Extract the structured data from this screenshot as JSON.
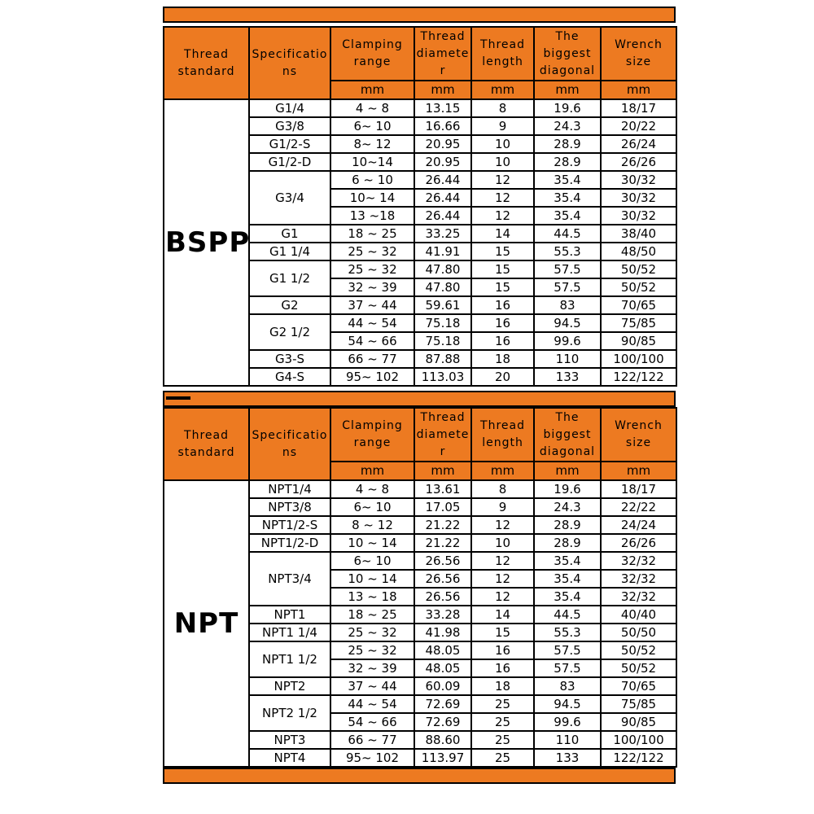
{
  "page": {
    "accent_orange": "#ED7A21",
    "border_color": "#000000",
    "background": "#ffffff"
  },
  "tables": [
    {
      "group_label": "BSPP",
      "headers": [
        "Thread standard",
        "Specifications",
        "Clamping range",
        "Thread diameter",
        "Thread length",
        "The biggest diagonal",
        "Wrench size"
      ],
      "unit_row": [
        "mm",
        "mm",
        "mm",
        "mm",
        "mm"
      ],
      "columns": [
        "Specifications",
        "Clamping range (mm)",
        "Thread diameter (mm)",
        "Thread length (mm)",
        "The biggest diagonal (mm)",
        "Wrench size (mm)"
      ],
      "rows": [
        {
          "spec": "G1/4",
          "rowspan": 1,
          "values": [
            "4 ~ 8",
            "13.15",
            "8",
            "19.6",
            "18/17"
          ]
        },
        {
          "spec": "G3/8",
          "rowspan": 1,
          "values": [
            "6~ 10",
            "16.66",
            "9",
            "24.3",
            "20/22"
          ]
        },
        {
          "spec": "G1/2-S",
          "rowspan": 1,
          "values": [
            "8~ 12",
            "20.95",
            "10",
            "28.9",
            "26/24"
          ]
        },
        {
          "spec": "G1/2-D",
          "rowspan": 1,
          "values": [
            "10~14",
            "20.95",
            "10",
            "28.9",
            "26/26"
          ]
        },
        {
          "spec": "G3/4",
          "rowspan": 3,
          "values": [
            "6 ~ 10",
            "26.44",
            "12",
            "35.4",
            "30/32"
          ]
        },
        {
          "spec": null,
          "values": [
            "10~ 14",
            "26.44",
            "12",
            "35.4",
            "30/32"
          ]
        },
        {
          "spec": null,
          "values": [
            "13 ~18",
            "26.44",
            "12",
            "35.4",
            "30/32"
          ]
        },
        {
          "spec": "G1",
          "rowspan": 1,
          "values": [
            "18 ~ 25",
            "33.25",
            "14",
            "44.5",
            "38/40"
          ]
        },
        {
          "spec": "G1 1/4",
          "rowspan": 1,
          "values": [
            "25 ~ 32",
            "41.91",
            "15",
            "55.3",
            "48/50"
          ]
        },
        {
          "spec": "G1 1/2",
          "rowspan": 2,
          "values": [
            "25 ~ 32",
            "47.80",
            "15",
            "57.5",
            "50/52"
          ]
        },
        {
          "spec": null,
          "values": [
            "32 ~ 39",
            "47.80",
            "15",
            "57.5",
            "50/52"
          ]
        },
        {
          "spec": "G2",
          "rowspan": 1,
          "values": [
            "37 ~ 44",
            "59.61",
            "16",
            "83",
            "70/65"
          ]
        },
        {
          "spec": "G2 1/2",
          "rowspan": 2,
          "values": [
            "44 ~ 54",
            "75.18",
            "16",
            "94.5",
            "75/85"
          ]
        },
        {
          "spec": null,
          "values": [
            "54 ~ 66",
            "75.18",
            "16",
            "99.6",
            "90/85"
          ]
        },
        {
          "spec": "G3-S",
          "rowspan": 1,
          "values": [
            "66 ~ 77",
            "87.88",
            "18",
            "110",
            "100/100"
          ]
        },
        {
          "spec": "G4-S",
          "rowspan": 1,
          "values": [
            "95~ 102",
            "113.03",
            "20",
            "133",
            "122/122"
          ]
        }
      ]
    },
    {
      "group_label": "NPT",
      "headers": [
        "Thread standard",
        "Specifications",
        "Clamping range",
        "Thread diameter",
        "Thread length",
        "The biggest diagonal",
        "Wrench size"
      ],
      "unit_row": [
        "mm",
        "mm",
        "mm",
        "mm",
        "mm"
      ],
      "columns": [
        "Specifications",
        "Clamping range (mm)",
        "Thread diameter (mm)",
        "Thread length (mm)",
        "The biggest diagonal (mm)",
        "Wrench size (mm)"
      ],
      "rows": [
        {
          "spec": "NPT1/4",
          "rowspan": 1,
          "values": [
            "4 ~ 8",
            "13.61",
            "8",
            "19.6",
            "18/17"
          ]
        },
        {
          "spec": "NPT3/8",
          "rowspan": 1,
          "values": [
            "6~ 10",
            "17.05",
            "9",
            "24.3",
            "22/22"
          ]
        },
        {
          "spec": "NPT1/2-S",
          "rowspan": 1,
          "values": [
            "8 ~ 12",
            "21.22",
            "12",
            "28.9",
            "24/24"
          ]
        },
        {
          "spec": "NPT1/2-D",
          "rowspan": 1,
          "values": [
            "10 ~ 14",
            "21.22",
            "10",
            "28.9",
            "26/26"
          ]
        },
        {
          "spec": "NPT3/4",
          "rowspan": 3,
          "values": [
            "6~ 10",
            "26.56",
            "12",
            "35.4",
            "32/32"
          ]
        },
        {
          "spec": null,
          "values": [
            "10 ~ 14",
            "26.56",
            "12",
            "35.4",
            "32/32"
          ]
        },
        {
          "spec": null,
          "values": [
            "13 ~ 18",
            "26.56",
            "12",
            "35.4",
            "32/32"
          ]
        },
        {
          "spec": "NPT1",
          "rowspan": 1,
          "values": [
            "18 ~ 25",
            "33.28",
            "14",
            "44.5",
            "40/40"
          ]
        },
        {
          "spec": "NPT1 1/4",
          "rowspan": 1,
          "values": [
            "25 ~ 32",
            "41.98",
            "15",
            "55.3",
            "50/50"
          ]
        },
        {
          "spec": "NPT1 1/2",
          "rowspan": 2,
          "values": [
            "25 ~ 32",
            "48.05",
            "16",
            "57.5",
            "50/52"
          ]
        },
        {
          "spec": null,
          "values": [
            "32 ~ 39",
            "48.05",
            "16",
            "57.5",
            "50/52"
          ]
        },
        {
          "spec": "NPT2",
          "rowspan": 1,
          "values": [
            "37 ~ 44",
            "60.09",
            "18",
            "83",
            "70/65"
          ]
        },
        {
          "spec": "NPT2 1/2",
          "rowspan": 2,
          "values": [
            "44 ~ 54",
            "72.69",
            "25",
            "94.5",
            "75/85"
          ]
        },
        {
          "spec": null,
          "values": [
            "54 ~ 66",
            "72.69",
            "25",
            "99.6",
            "90/85"
          ]
        },
        {
          "spec": "NPT3",
          "rowspan": 1,
          "values": [
            "66 ~ 77",
            "88.60",
            "25",
            "110",
            "100/100"
          ]
        },
        {
          "spec": "NPT4",
          "rowspan": 1,
          "values": [
            "95~ 102",
            "113.97",
            "25",
            "133",
            "122/122"
          ]
        }
      ]
    }
  ]
}
